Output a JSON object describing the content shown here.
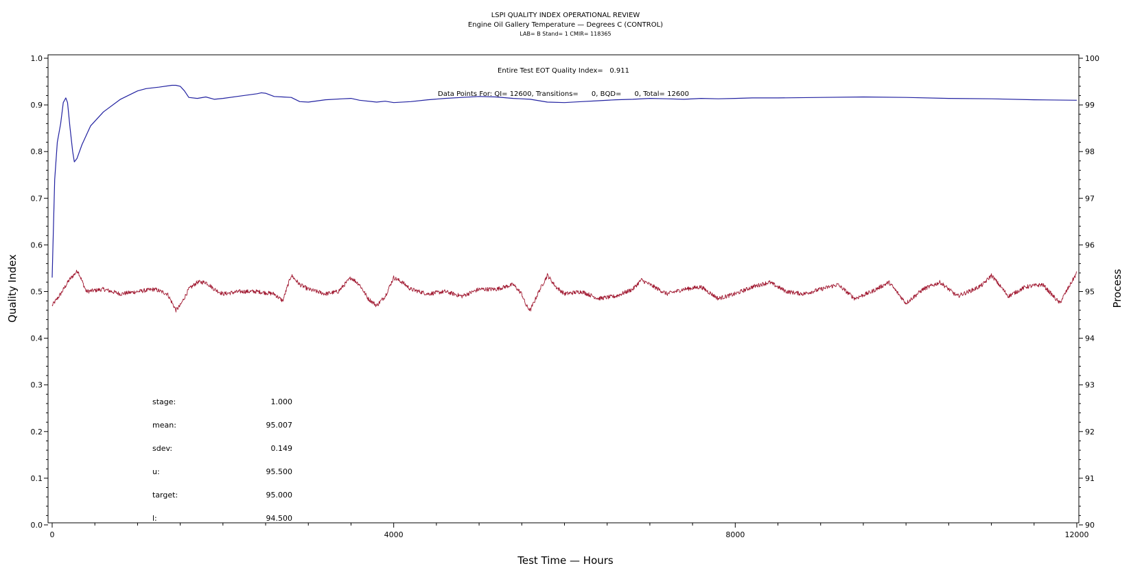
{
  "header": {
    "line1": "LSPI QUALITY INDEX OPERATIONAL REVIEW",
    "line2": "Engine Oil Gallery Temperature — Degrees C (CONTROL)",
    "line3": "LAB= B Stand= 1 CMIR= 118365"
  },
  "annotations": {
    "quality_index": "Entire Test EOT Quality Index=   0.911",
    "data_points": "Data Points For: QI= 12600, Transitions=      0, BQD=      0, Total= 12600"
  },
  "stats": [
    {
      "label": "stage:",
      "value": "1.000"
    },
    {
      "label": "mean:",
      "value": "95.007"
    },
    {
      "label": "sdev:",
      "value": "0.149"
    },
    {
      "label": "u:",
      "value": "95.500"
    },
    {
      "label": "target:",
      "value": "95.000"
    },
    {
      "label": "l:",
      "value": "94.500"
    }
  ],
  "chart_data": {
    "type": "line",
    "xlabel": "Test Time — Hours",
    "ylabel_left": "Quality Index",
    "ylabel_right": "Process",
    "xlim": [
      0,
      12000
    ],
    "ylim_left": [
      0,
      1.0
    ],
    "ylim_right": [
      90,
      100
    ],
    "x_ticks": [
      0,
      4000,
      8000,
      12000
    ],
    "y_ticks_left": [
      "0.0",
      "0.1",
      "0.2",
      "0.3",
      "0.4",
      "0.5",
      "0.6",
      "0.7",
      "0.8",
      "0.9",
      "1.0"
    ],
    "y_ticks_right": [
      "90",
      "91",
      "92",
      "93",
      "94",
      "95",
      "96",
      "97",
      "98",
      "99",
      "100"
    ],
    "grid": false,
    "series": [
      {
        "axis": "left",
        "color": "#2020a0",
        "x": [
          0,
          10,
          30,
          60,
          100,
          130,
          160,
          180,
          210,
          240,
          260,
          290,
          350,
          450,
          600,
          800,
          1000,
          1100,
          1250,
          1400,
          1450,
          1500,
          1550,
          1600,
          1700,
          1800,
          1900,
          2000,
          2200,
          2400,
          2450,
          2500,
          2600,
          2700,
          2800,
          2900,
          3000,
          3200,
          3400,
          3500,
          3600,
          3800,
          3900,
          4000,
          4200,
          4400,
          4600,
          4800,
          5000,
          5200,
          5400,
          5500,
          5600,
          5800,
          6000,
          6200,
          6400,
          6600,
          6800,
          7000,
          7200,
          7400,
          7600,
          7800,
          8000,
          8200,
          8500,
          9000,
          9500,
          10000,
          10500,
          11000,
          11500,
          12000
        ],
        "values": [
          0.53,
          0.6,
          0.74,
          0.82,
          0.86,
          0.905,
          0.915,
          0.905,
          0.85,
          0.8,
          0.778,
          0.785,
          0.815,
          0.855,
          0.885,
          0.912,
          0.93,
          0.935,
          0.938,
          0.942,
          0.942,
          0.94,
          0.93,
          0.916,
          0.914,
          0.917,
          0.912,
          0.914,
          0.919,
          0.924,
          0.926,
          0.925,
          0.918,
          0.917,
          0.916,
          0.907,
          0.906,
          0.911,
          0.913,
          0.914,
          0.91,
          0.906,
          0.908,
          0.905,
          0.907,
          0.911,
          0.914,
          0.916,
          0.918,
          0.917,
          0.914,
          0.913,
          0.912,
          0.906,
          0.905,
          0.907,
          0.909,
          0.911,
          0.912,
          0.914,
          0.913,
          0.912,
          0.914,
          0.913,
          0.914,
          0.915,
          0.915,
          0.916,
          0.917,
          0.916,
          0.914,
          0.913,
          0.911,
          0.91
        ]
      },
      {
        "axis": "right",
        "color": "#a01830",
        "x": [
          0,
          100,
          200,
          300,
          400,
          600,
          800,
          1000,
          1200,
          1350,
          1450,
          1500,
          1600,
          1700,
          1800,
          1900,
          2000,
          2200,
          2400,
          2600,
          2700,
          2800,
          2900,
          3000,
          3200,
          3350,
          3500,
          3600,
          3700,
          3800,
          3900,
          4000,
          4100,
          4200,
          4300,
          4400,
          4600,
          4800,
          5000,
          5200,
          5400,
          5500,
          5550,
          5600,
          5700,
          5800,
          5900,
          6000,
          6200,
          6400,
          6600,
          6800,
          6900,
          7000,
          7200,
          7400,
          7600,
          7800,
          8000,
          8200,
          8400,
          8600,
          8800,
          9000,
          9200,
          9400,
          9600,
          9800,
          10000,
          10200,
          10400,
          10600,
          10800,
          10900,
          11000,
          11200,
          11400,
          11600,
          11800,
          12000
        ],
        "values": [
          94.7,
          94.95,
          95.25,
          95.45,
          95.0,
          95.05,
          94.95,
          95.0,
          95.05,
          94.95,
          94.6,
          94.7,
          95.05,
          95.2,
          95.2,
          95.05,
          94.95,
          95.0,
          95.0,
          94.95,
          94.8,
          95.35,
          95.15,
          95.05,
          94.95,
          95.0,
          95.3,
          95.15,
          94.85,
          94.7,
          94.9,
          95.3,
          95.2,
          95.05,
          95.0,
          94.95,
          95.0,
          94.9,
          95.05,
          95.05,
          95.15,
          94.95,
          94.7,
          94.6,
          95.0,
          95.35,
          95.1,
          94.95,
          95.0,
          94.85,
          94.9,
          95.05,
          95.25,
          95.15,
          94.95,
          95.05,
          95.1,
          94.85,
          94.95,
          95.1,
          95.2,
          95.0,
          94.95,
          95.05,
          95.15,
          94.85,
          95.0,
          95.2,
          94.75,
          95.05,
          95.2,
          94.9,
          95.05,
          95.15,
          95.35,
          94.9,
          95.1,
          95.15,
          94.75,
          95.4
        ]
      }
    ]
  }
}
